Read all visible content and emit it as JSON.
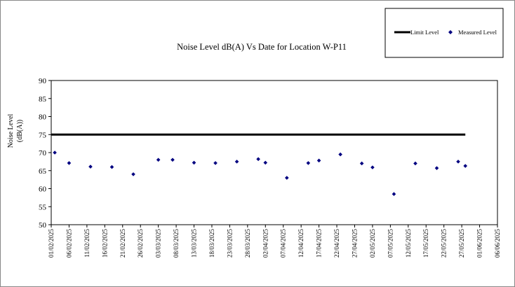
{
  "chart_data": {
    "type": "scatter",
    "title": "Noise Level dB(A) Vs Date for Location W-P11",
    "ylabel": [
      "Noise Level",
      "(dB(A))"
    ],
    "xlabel": "",
    "ylim": [
      50,
      90
    ],
    "yticks": [
      50,
      55,
      60,
      65,
      70,
      75,
      80,
      85,
      90
    ],
    "xlim": [
      "01/02/2025",
      "06/06/2025"
    ],
    "xticks": [
      "01/02/2025",
      "06/02/2025",
      "11/02/2025",
      "16/02/2025",
      "21/02/2025",
      "26/02/2025",
      "03/03/2025",
      "08/03/2025",
      "13/03/2025",
      "18/03/2025",
      "23/03/2025",
      "28/03/2025",
      "02/04/2025",
      "07/04/2025",
      "12/04/2025",
      "17/04/2025",
      "22/04/2025",
      "27/04/2025",
      "02/05/2025",
      "07/05/2025",
      "12/05/2025",
      "17/05/2025",
      "22/05/2025",
      "27/05/2025",
      "01/06/2025",
      "06/06/2025"
    ],
    "grid": false,
    "legend_position": "top-right",
    "colors": {
      "limit": "#000000",
      "measured": "#000080"
    },
    "series": [
      {
        "name": "Limit Level",
        "kind": "line",
        "x": [
          "01/02/2025",
          "28/05/2025"
        ],
        "y": [
          75,
          75
        ]
      },
      {
        "name": "Measured Level",
        "kind": "scatter",
        "marker": "diamond",
        "x": [
          "02/02/2025",
          "06/02/2025",
          "12/02/2025",
          "18/02/2025",
          "24/02/2025",
          "03/03/2025",
          "07/03/2025",
          "13/03/2025",
          "19/03/2025",
          "25/03/2025",
          "31/03/2025",
          "02/04/2025",
          "08/04/2025",
          "14/04/2025",
          "17/04/2025",
          "23/04/2025",
          "29/04/2025",
          "02/05/2025",
          "08/05/2025",
          "14/05/2025",
          "20/05/2025",
          "26/05/2025",
          "28/05/2025"
        ],
        "y": [
          70.0,
          67.1,
          66.1,
          66.0,
          64.0,
          68.0,
          68.0,
          67.2,
          67.1,
          67.5,
          68.2,
          67.2,
          63.0,
          67.1,
          67.8,
          69.5,
          67.0,
          65.9,
          58.5,
          67.0,
          65.7,
          67.5,
          66.3
        ]
      }
    ]
  }
}
